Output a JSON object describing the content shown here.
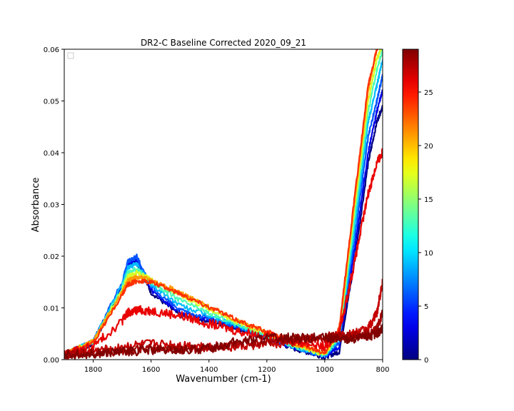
{
  "chart_data": {
    "type": "line",
    "title": "DR2-C Baseline Corrected 2020_09_21",
    "xlabel": "Wavenumber (cm-1)",
    "ylabel": "Absorbance",
    "xlim": [
      1900,
      800
    ],
    "x_reversed": true,
    "ylim": [
      0,
      0.06
    ],
    "x_ticks": [
      1800,
      1600,
      1400,
      1200,
      1000,
      800
    ],
    "x_tick_labels": [
      "1800",
      "1600",
      "1400",
      "1200",
      "1000",
      "800"
    ],
    "y_ticks": [
      0,
      0.01,
      0.02,
      0.03,
      0.04,
      0.05,
      0.06
    ],
    "y_tick_labels": [
      "0.00",
      "0.01",
      "0.02",
      "0.03",
      "0.04",
      "0.05",
      "0.06"
    ],
    "grid": false,
    "legend": "upper-left (empty)",
    "colormap": "jet",
    "colorbar": {
      "range": [
        0,
        29
      ],
      "ticks": [
        0,
        5,
        10,
        15,
        20,
        25
      ],
      "tick_labels": [
        "0",
        "5",
        "10",
        "15",
        "20",
        "25"
      ]
    },
    "series": [
      {
        "color_value": 0,
        "x": [
          1900,
          1800,
          1700,
          1680,
          1650,
          1600,
          1500,
          1400,
          1300,
          1200,
          1100,
          1000,
          950,
          900,
          850,
          820,
          800
        ],
        "y": [
          0.001,
          0.003,
          0.014,
          0.018,
          0.019,
          0.013,
          0.0085,
          0.0075,
          0.006,
          0.004,
          0.002,
          0.0005,
          0.0015,
          0.018,
          0.038,
          0.046,
          0.049
        ]
      },
      {
        "color_value": 3,
        "x": [
          1900,
          1800,
          1700,
          1680,
          1650,
          1600,
          1500,
          1400,
          1300,
          1200,
          1100,
          1000,
          950,
          900,
          850,
          820,
          800
        ],
        "y": [
          0.001,
          0.0035,
          0.0145,
          0.0185,
          0.0195,
          0.0135,
          0.009,
          0.0078,
          0.0062,
          0.0042,
          0.0022,
          0.0006,
          0.0025,
          0.02,
          0.04,
          0.048,
          0.052
        ]
      },
      {
        "color_value": 6,
        "x": [
          1900,
          1800,
          1700,
          1680,
          1650,
          1600,
          1500,
          1400,
          1300,
          1200,
          1100,
          1000,
          950,
          900,
          850,
          820,
          800
        ],
        "y": [
          0.001,
          0.0035,
          0.015,
          0.019,
          0.02,
          0.014,
          0.0095,
          0.008,
          0.0063,
          0.0043,
          0.0023,
          0.0007,
          0.0035,
          0.022,
          0.043,
          0.05,
          0.055
        ]
      },
      {
        "color_value": 9,
        "x": [
          1900,
          1800,
          1700,
          1680,
          1650,
          1600,
          1500,
          1400,
          1300,
          1200,
          1100,
          1000,
          950,
          900,
          850,
          820,
          800
        ],
        "y": [
          0.001,
          0.0035,
          0.0145,
          0.0178,
          0.0185,
          0.0145,
          0.0105,
          0.0085,
          0.0065,
          0.0045,
          0.0024,
          0.0008,
          0.004,
          0.024,
          0.046,
          0.053,
          0.058
        ]
      },
      {
        "color_value": 13,
        "x": [
          1900,
          1800,
          1700,
          1680,
          1650,
          1600,
          1500,
          1400,
          1300,
          1200,
          1100,
          1000,
          950,
          900,
          850,
          820,
          800
        ],
        "y": [
          0.001,
          0.0035,
          0.014,
          0.0168,
          0.0175,
          0.015,
          0.0115,
          0.009,
          0.0068,
          0.0047,
          0.0025,
          0.0009,
          0.0045,
          0.026,
          0.048,
          0.056,
          0.06
        ]
      },
      {
        "color_value": 17,
        "x": [
          1900,
          1800,
          1700,
          1680,
          1650,
          1600,
          1500,
          1400,
          1300,
          1200,
          1100,
          1000,
          950,
          900,
          850,
          820,
          800
        ],
        "y": [
          0.001,
          0.0035,
          0.0135,
          0.016,
          0.0168,
          0.0155,
          0.0125,
          0.0098,
          0.0072,
          0.005,
          0.0028,
          0.001,
          0.005,
          0.028,
          0.05,
          0.058,
          0.061
        ]
      },
      {
        "color_value": 21,
        "x": [
          1900,
          1800,
          1700,
          1680,
          1650,
          1600,
          1500,
          1400,
          1300,
          1200,
          1100,
          1000,
          950,
          900,
          850,
          820,
          800
        ],
        "y": [
          0.001,
          0.0035,
          0.013,
          0.0152,
          0.016,
          0.0155,
          0.013,
          0.0102,
          0.0075,
          0.0052,
          0.003,
          0.0012,
          0.0055,
          0.029,
          0.052,
          0.06,
          0.062
        ]
      },
      {
        "color_value": 24,
        "x": [
          1900,
          1800,
          1700,
          1680,
          1650,
          1600,
          1500,
          1400,
          1300,
          1200,
          1100,
          1000,
          950,
          900,
          850,
          820,
          800
        ],
        "y": [
          0.001,
          0.0033,
          0.0125,
          0.0145,
          0.0152,
          0.015,
          0.0128,
          0.0102,
          0.0076,
          0.0054,
          0.0032,
          0.0014,
          0.006,
          0.03,
          0.053,
          0.06,
          0.062
        ]
      },
      {
        "color_value": 26,
        "x": [
          1900,
          1800,
          1700,
          1680,
          1650,
          1600,
          1500,
          1400,
          1300,
          1200,
          1100,
          1000,
          950,
          900,
          850,
          820,
          800
        ],
        "y": [
          0.001,
          0.0025,
          0.0075,
          0.009,
          0.0095,
          0.0095,
          0.0085,
          0.007,
          0.0055,
          0.0045,
          0.0035,
          0.0025,
          0.005,
          0.018,
          0.032,
          0.038,
          0.04
        ]
      },
      {
        "color_value": 27,
        "x": [
          1900,
          1800,
          1700,
          1600,
          1500,
          1400,
          1300,
          1200,
          1100,
          1000,
          950,
          900,
          850,
          820,
          800
        ],
        "y": [
          0.001,
          0.0015,
          0.0025,
          0.003,
          0.0028,
          0.0025,
          0.0025,
          0.003,
          0.0035,
          0.004,
          0.0045,
          0.005,
          0.006,
          0.009,
          0.015
        ]
      },
      {
        "color_value": 28,
        "x": [
          1900,
          1800,
          1700,
          1600,
          1500,
          1400,
          1300,
          1200,
          1100,
          1000,
          950,
          900,
          850,
          820,
          800
        ],
        "y": [
          0.001,
          0.0012,
          0.0018,
          0.0022,
          0.002,
          0.0022,
          0.003,
          0.0035,
          0.004,
          0.0045,
          0.0045,
          0.0045,
          0.005,
          0.006,
          0.009
        ]
      },
      {
        "color_value": 29,
        "x": [
          1900,
          1800,
          1700,
          1600,
          1500,
          1400,
          1300,
          1200,
          1100,
          1000,
          950,
          900,
          850,
          820,
          800
        ],
        "y": [
          0.001,
          0.0012,
          0.0015,
          0.0018,
          0.0018,
          0.0022,
          0.0035,
          0.0042,
          0.0042,
          0.0042,
          0.004,
          0.004,
          0.0045,
          0.005,
          0.006
        ]
      }
    ]
  }
}
